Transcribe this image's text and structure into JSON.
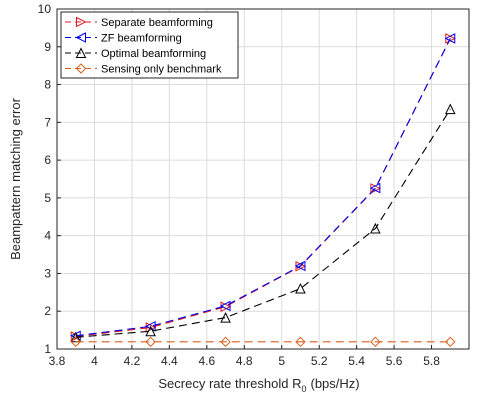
{
  "chart_data": {
    "type": "line",
    "xlabel": "Secrecy rate threshold R",
    "xlabel_subscript": "0",
    "xlabel_unit": "(bps/Hz)",
    "ylabel": "Beampattern matching error",
    "xlim": [
      3.8,
      6.0
    ],
    "ylim": [
      1,
      10
    ],
    "xticks": [
      3.8,
      4,
      4.2,
      4.4,
      4.6,
      4.8,
      5,
      5.2,
      5.4,
      5.6,
      5.8,
      6
    ],
    "xtick_labels": [
      "3.8",
      "4",
      "4.2",
      "4.4",
      "4.6",
      "4.8",
      "5",
      "5.2",
      "5.4",
      "5.6",
      "5.8",
      ""
    ],
    "yticks": [
      1,
      2,
      3,
      4,
      5,
      6,
      7,
      8,
      9,
      10
    ],
    "ytick_labels": [
      "1",
      "2",
      "3",
      "4",
      "5",
      "6",
      "7",
      "8",
      "9",
      "10"
    ],
    "grid": true,
    "legend_position": "top-left",
    "x": [
      3.9,
      4.3,
      4.7,
      5.1,
      5.5,
      5.9
    ],
    "series": [
      {
        "name": "Separate beamforming",
        "values": [
          1.33,
          1.57,
          2.12,
          3.19,
          5.25,
          9.22
        ],
        "color": "#e31a1c",
        "dash": "8,5",
        "marker": "triangle-right"
      },
      {
        "name": "ZF beamforming",
        "values": [
          1.35,
          1.6,
          2.14,
          3.2,
          5.26,
          9.22
        ],
        "color": "#0000ee",
        "dash": "8,5",
        "marker": "triangle-left"
      },
      {
        "name": "Optimal beamforming",
        "values": [
          1.31,
          1.47,
          1.83,
          2.6,
          4.19,
          7.35
        ],
        "color": "#000000",
        "dash": "8,5",
        "marker": "triangle-up"
      },
      {
        "name": "Sensing only benchmark",
        "values": [
          1.19,
          1.19,
          1.19,
          1.19,
          1.19,
          1.19
        ],
        "color": "#d95f1b",
        "dash": "8,5",
        "marker": "diamond"
      }
    ]
  }
}
